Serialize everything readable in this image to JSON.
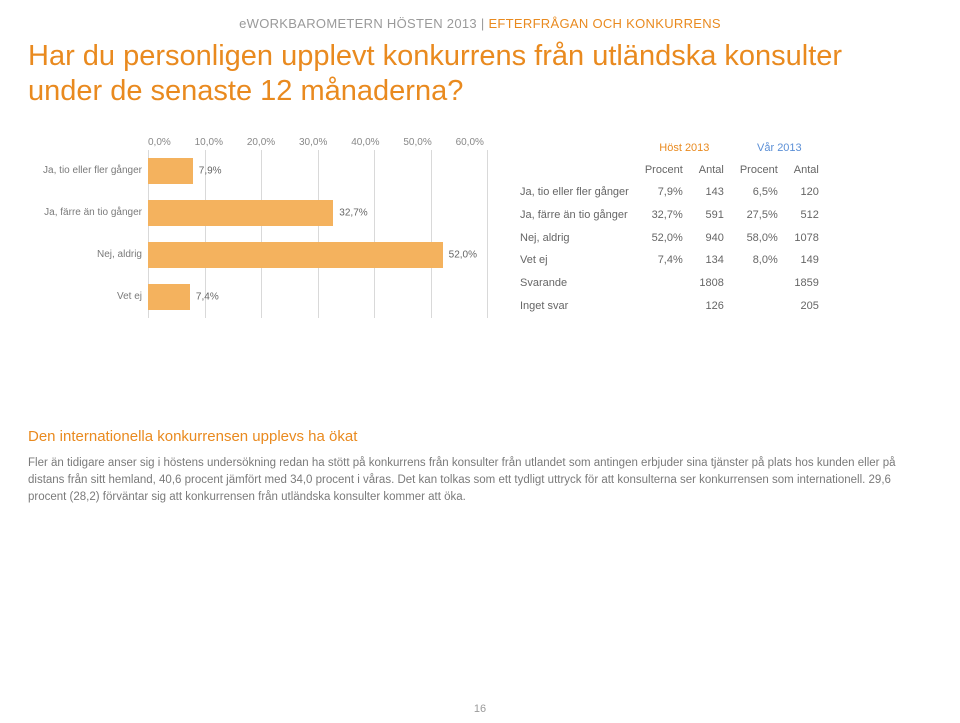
{
  "eyebrow": {
    "left": "eWORKBAROMETERN HÖSTEN 2013",
    "sep": " | ",
    "right": "EFTERFRÅGAN OCH KONKURRENS"
  },
  "headline": "Har du personligen upplevt konkurrens från utländska konsulter under de senaste 12 månaderna?",
  "chart": {
    "type": "bar",
    "orientation": "horizontal",
    "x_ticks": [
      "0,0%",
      "10,0%",
      "20,0%",
      "30,0%",
      "40,0%",
      "50,0%",
      "60,0%"
    ],
    "x_max_percent": 60,
    "bar_color": "#f4b25e",
    "grid_color": "#d9d9d9",
    "label_color": "#7a7a7a",
    "categories": [
      {
        "label": "Ja, tio eller fler gånger",
        "value_pct": 7.9,
        "value_label": "7,9%"
      },
      {
        "label": "Ja, färre än tio gånger",
        "value_pct": 32.7,
        "value_label": "32,7%"
      },
      {
        "label": "Nej, aldrig",
        "value_pct": 52.0,
        "value_label": "52,0%"
      },
      {
        "label": "Vet ej",
        "value_pct": 7.4,
        "value_label": "7,4%"
      }
    ]
  },
  "table": {
    "periods": [
      {
        "label": "Höst 2013",
        "color": "#e98a1f"
      },
      {
        "label": "Vår 2013",
        "color": "#5b8fd6"
      }
    ],
    "sub_headers": [
      "Procent",
      "Antal",
      "Procent",
      "Antal"
    ],
    "rows": [
      {
        "label": "Ja, tio eller fler gånger",
        "cells": [
          "7,9%",
          "143",
          "6,5%",
          "120"
        ]
      },
      {
        "label": "Ja, färre än tio gånger",
        "cells": [
          "32,7%",
          "591",
          "27,5%",
          "512"
        ]
      },
      {
        "label": "Nej, aldrig",
        "cells": [
          "52,0%",
          "940",
          "58,0%",
          "1078"
        ]
      },
      {
        "label": "Vet ej",
        "cells": [
          "7,4%",
          "134",
          "8,0%",
          "149"
        ]
      },
      {
        "label": "Svarande",
        "cells": [
          "",
          "1808",
          "",
          "1859"
        ]
      },
      {
        "label": "Inget svar",
        "cells": [
          "",
          "126",
          "",
          "205"
        ]
      }
    ]
  },
  "narrative": {
    "heading": "Den internationella konkurrensen upplevs ha ökat",
    "body": "Fler än tidigare anser sig i höstens undersökning redan ha stött på konkurrens från konsulter från utlandet som antingen erbjuder sina tjänster på plats hos kunden eller på distans från sitt hemland, 40,6 procent jämfört med 34,0 procent i våras. Det kan tolkas som ett tydligt uttryck för att konsulterna ser konkurrensen som internationell. 29,6 procent (28,2) förväntar sig att konkurrensen från utländska konsulter kommer att öka."
  },
  "page_number": "16"
}
